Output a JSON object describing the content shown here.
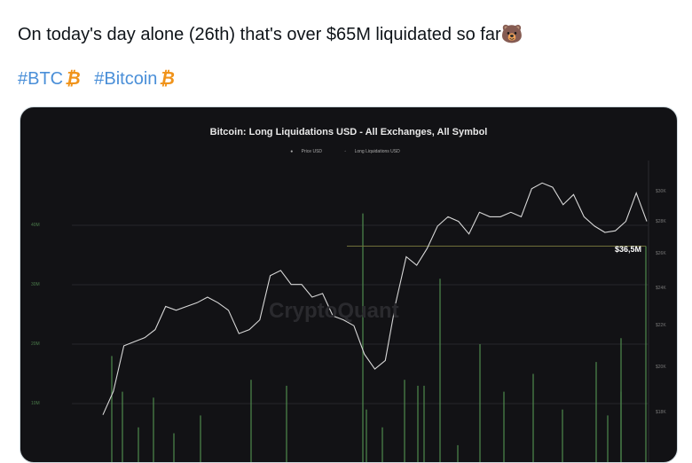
{
  "tweet": {
    "text": "On today's day alone (26th) that's over $65M liquidated so far🐻",
    "hashtags": [
      "#BTC",
      "#Bitcoin"
    ],
    "hashtag_icon": "bitcoin-emoji",
    "colors": {
      "hashtag": "#4a8fd8",
      "bitcoin": "#f0931a"
    }
  },
  "chart_data": {
    "type": "line+bar",
    "title": "Bitcoin: Long Liquidations USD - All Exchanges, All Symbol",
    "legend": [
      "Price USD",
      "Long Liquidations USD"
    ],
    "legend_placement": "top",
    "watermark": "CryptoQuant",
    "annotation": "$36,5M",
    "left_axis": {
      "ticks": [
        "10M",
        "20M",
        "30M",
        "40M"
      ],
      "values": [
        10,
        20,
        30,
        40
      ],
      "unit": "USD millions"
    },
    "right_axis": {
      "ticks": [
        "$18K",
        "$20K",
        "$22K",
        "$24K",
        "$26K",
        "$28K",
        "$30K"
      ],
      "values": [
        18,
        20,
        22,
        24,
        26,
        28,
        30
      ],
      "scale": "log"
    },
    "grid": true,
    "series": [
      {
        "name": "Price USD",
        "type": "line",
        "color": "#d8d8d8",
        "values": [
          17.9,
          18.9,
          21.0,
          21.2,
          21.4,
          21.8,
          23.0,
          22.8,
          23.0,
          23.2,
          23.5,
          23.2,
          22.8,
          21.6,
          21.8,
          22.3,
          24.7,
          25.0,
          24.2,
          24.2,
          23.5,
          23.7,
          22.5,
          22.3,
          22.0,
          20.6,
          19.9,
          20.3,
          23.2,
          25.8,
          25.3,
          26.3,
          27.7,
          28.3,
          28.0,
          27.2,
          28.6,
          28.3,
          28.3,
          28.6,
          28.3,
          30.2,
          30.6,
          30.3,
          29.1,
          29.8,
          28.3,
          27.7,
          27.3,
          27.4,
          28.0,
          29.9,
          28.0
        ]
      },
      {
        "name": "Long Liquidations USD",
        "type": "bar",
        "color": "#4e8a4e",
        "values": [
          18,
          12,
          6,
          11,
          5,
          8,
          14,
          13,
          42,
          9,
          6,
          14,
          13,
          13,
          31,
          3,
          20,
          12,
          15,
          9,
          17,
          8,
          12,
          21,
          36.5
        ]
      }
    ]
  }
}
